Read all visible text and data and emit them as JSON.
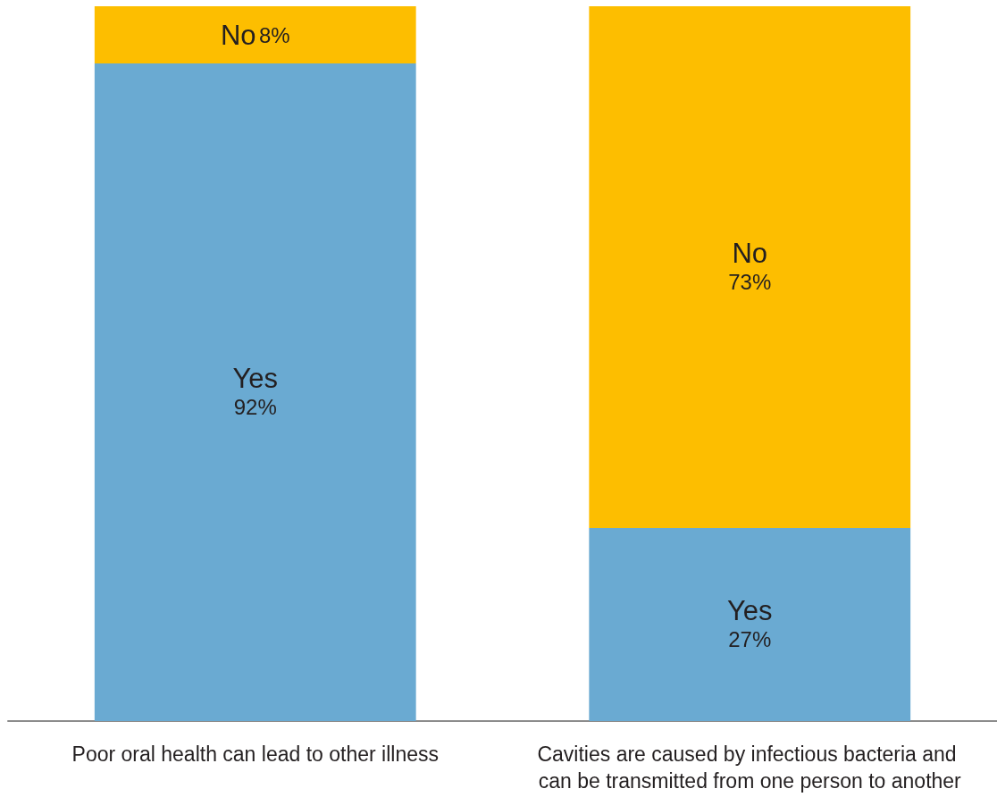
{
  "chart_data": {
    "type": "bar",
    "stacked": true,
    "categories": [
      "Poor oral health can lead to other illness",
      "Cavities are caused by infectious bacteria and can be transmitted from one person to another"
    ],
    "series": [
      {
        "name": "Yes",
        "color": "#6aaad2",
        "values": [
          92,
          27
        ],
        "value_labels": [
          "92%",
          "27%"
        ]
      },
      {
        "name": "No",
        "color": "#fdbe00",
        "values": [
          8,
          73
        ],
        "value_labels": [
          "8%",
          "73%"
        ]
      }
    ],
    "legend": false
  }
}
